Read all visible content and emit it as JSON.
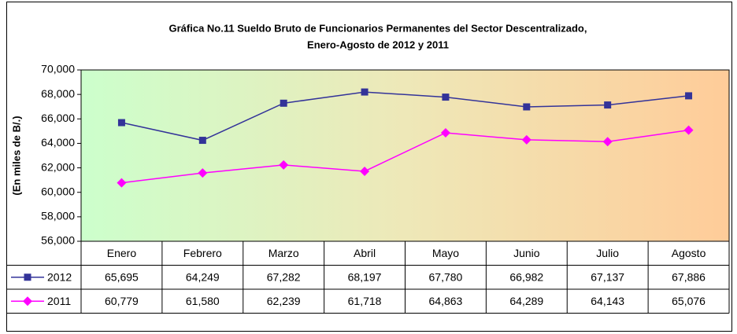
{
  "chart_data": {
    "type": "line",
    "title": [
      "Gráfica No.11 Sueldo Bruto de Funcionarios Permanentes del Sector Descentralizado,",
      "Enero-Agosto de 2012 y 2011"
    ],
    "y_label": "(En miles de B/.)",
    "categories": [
      "Enero",
      "Febrero",
      "Marzo",
      "Abril",
      "Mayo",
      "Junio",
      "Julio",
      "Agosto"
    ],
    "series": [
      {
        "name": "2012",
        "color": "#333399",
        "marker": "square",
        "values": [
          65695,
          64249,
          67282,
          68197,
          67780,
          66982,
          67137,
          67886
        ],
        "value_labels": [
          "65,695",
          "64,249",
          "67,282",
          "68,197",
          "67,780",
          "66,982",
          "67,137",
          "67,886"
        ]
      },
      {
        "name": "2011",
        "color": "#ff00ff",
        "marker": "diamond",
        "values": [
          60779,
          61580,
          62239,
          61718,
          64863,
          64289,
          64143,
          65076
        ],
        "value_labels": [
          "60,779",
          "61,580",
          "62,239",
          "61,718",
          "64,863",
          "64,289",
          "64,143",
          "65,076"
        ]
      }
    ],
    "ylim": [
      56000,
      70000
    ],
    "yticks": [
      {
        "value": 56000,
        "label": "56,000"
      },
      {
        "value": 58000,
        "label": "58,000"
      },
      {
        "value": 60000,
        "label": "60,000"
      },
      {
        "value": 62000,
        "label": "62,000"
      },
      {
        "value": 64000,
        "label": "64,000"
      },
      {
        "value": 66000,
        "label": "66,000"
      },
      {
        "value": 68000,
        "label": "68,000"
      },
      {
        "value": 70000,
        "label": "70,000"
      }
    ],
    "grid": false,
    "data_table": true
  }
}
